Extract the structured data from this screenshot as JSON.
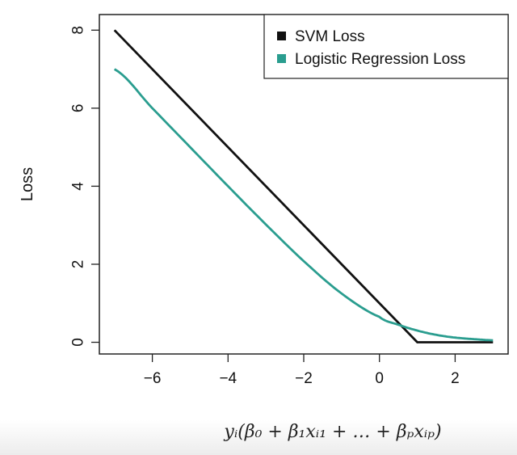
{
  "chart_data": {
    "type": "line",
    "title": "",
    "xlabel": "yᵢ(β₀ + β₁xᵢ₁ + … + βₚxᵢₚ)",
    "ylabel": "Loss",
    "xlim": [
      -7.4,
      3.4
    ],
    "ylim": [
      -0.3,
      8.4
    ],
    "x_ticks": [
      -6,
      -4,
      -2,
      0,
      2
    ],
    "y_ticks": [
      0,
      2,
      4,
      6,
      8
    ],
    "grid": false,
    "legend_position": "top-right",
    "series": [
      {
        "name": "SVM Loss",
        "color": "#111111",
        "x": [
          -7,
          1,
          3
        ],
        "y": [
          8,
          0,
          0
        ]
      },
      {
        "name": "Logistic Regression Loss",
        "color": "#2a9d8f",
        "x": [
          -7,
          -6,
          -5,
          -4,
          -3,
          -2,
          -1,
          0,
          0.5,
          1,
          1.5,
          2,
          2.5,
          3
        ],
        "y": [
          7.0,
          6.0,
          5.0,
          4.0,
          3.02,
          2.08,
          1.25,
          0.65,
          0.45,
          0.3,
          0.19,
          0.12,
          0.08,
          0.05
        ]
      }
    ]
  }
}
